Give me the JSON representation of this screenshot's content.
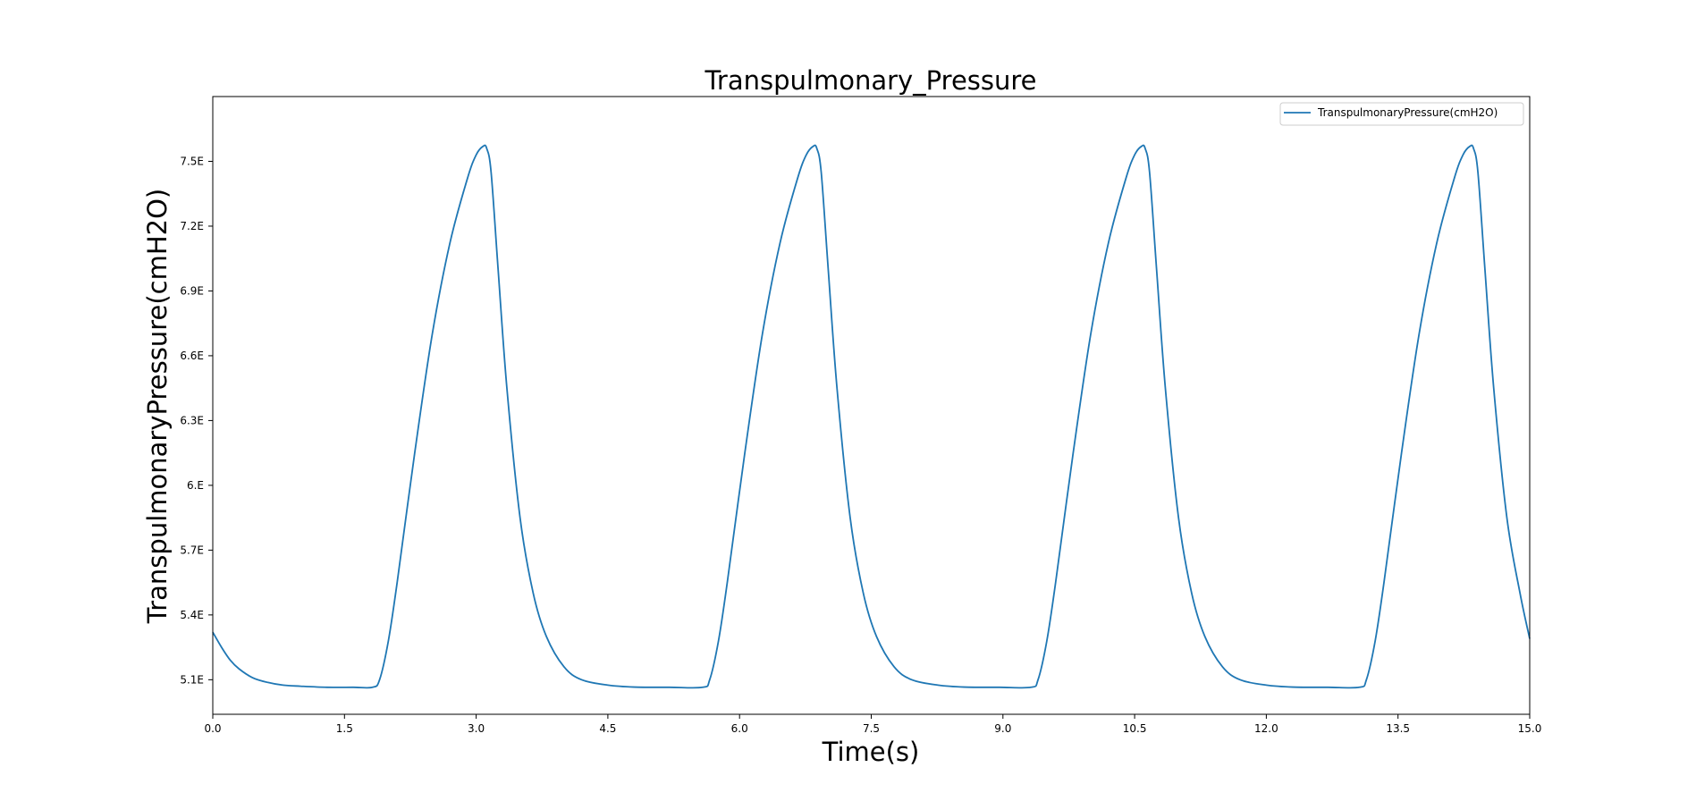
{
  "chart_data": {
    "type": "line",
    "title": "Transpulmonary_Pressure",
    "xlabel": "Time(s)",
    "ylabel": "TranspulmonaryPressure(cmH2O)",
    "xlim": [
      0,
      15
    ],
    "ylim": [
      4.94,
      7.8
    ],
    "x_ticks": [
      0.0,
      1.5,
      3.0,
      4.5,
      6.0,
      7.5,
      9.0,
      10.5,
      12.0,
      13.5,
      15.0
    ],
    "x_tick_labels": [
      "0.0",
      "1.5",
      "3.0",
      "4.5",
      "6.0",
      "7.5",
      "9.0",
      "10.5",
      "12.0",
      "13.5",
      "15.0"
    ],
    "y_ticks": [
      5.1,
      5.4,
      5.7,
      6.0,
      6.3,
      6.6,
      6.9,
      7.2,
      7.5
    ],
    "y_tick_labels": [
      "5.1E",
      "5.4E",
      "5.7E",
      "6.E",
      "6.3E",
      "6.6E",
      "6.9E",
      "7.2E",
      "7.5E"
    ],
    "grid": false,
    "legend_position": "top-right",
    "series": [
      {
        "name": "TranspulmonaryPressure(cmH2O)",
        "color": "#1f77b4",
        "x": [
          0.0,
          0.1,
          0.2,
          0.3,
          0.45,
          0.6,
          0.8,
          1.0,
          1.3,
          1.6,
          1.82,
          1.9,
          2.0,
          2.1,
          2.3,
          2.5,
          2.7,
          2.9,
          3.0,
          3.08,
          3.12,
          3.17,
          3.25,
          3.35,
          3.5,
          3.65,
          3.8,
          4.0,
          4.2,
          4.5,
          4.8,
          5.2,
          5.58,
          5.66,
          5.76,
          5.86,
          6.06,
          6.26,
          6.46,
          6.66,
          6.76,
          6.84,
          6.88,
          6.93,
          7.01,
          7.11,
          7.26,
          7.41,
          7.56,
          7.76,
          7.96,
          8.26,
          8.56,
          8.96,
          9.32,
          9.4,
          9.5,
          9.6,
          9.8,
          10.0,
          10.2,
          10.4,
          10.5,
          10.58,
          10.62,
          10.67,
          10.75,
          10.85,
          11.0,
          11.15,
          11.3,
          11.5,
          11.7,
          12.0,
          12.3,
          12.7,
          13.06,
          13.14,
          13.24,
          13.34,
          13.54,
          13.74,
          13.94,
          14.14,
          14.24,
          14.32,
          14.36,
          14.41,
          14.49,
          14.59,
          14.74,
          14.89,
          15.0
        ],
        "y": [
          5.32,
          5.25,
          5.19,
          5.15,
          5.11,
          5.09,
          5.075,
          5.07,
          5.065,
          5.065,
          5.065,
          5.1,
          5.28,
          5.55,
          6.15,
          6.7,
          7.12,
          7.42,
          7.53,
          7.57,
          7.56,
          7.45,
          7.0,
          6.45,
          5.85,
          5.5,
          5.3,
          5.16,
          5.1,
          5.075,
          5.066,
          5.065,
          5.065,
          5.1,
          5.28,
          5.55,
          6.15,
          6.7,
          7.12,
          7.42,
          7.53,
          7.57,
          7.56,
          7.45,
          7.0,
          6.45,
          5.85,
          5.5,
          5.3,
          5.16,
          5.1,
          5.075,
          5.066,
          5.065,
          5.065,
          5.1,
          5.28,
          5.55,
          6.15,
          6.7,
          7.12,
          7.42,
          7.53,
          7.57,
          7.56,
          7.45,
          7.0,
          6.45,
          5.85,
          5.5,
          5.3,
          5.16,
          5.1,
          5.075,
          5.066,
          5.065,
          5.065,
          5.1,
          5.28,
          5.55,
          6.15,
          6.7,
          7.12,
          7.42,
          7.53,
          7.57,
          7.56,
          7.45,
          7.0,
          6.45,
          5.85,
          5.5,
          5.29
        ]
      }
    ]
  }
}
